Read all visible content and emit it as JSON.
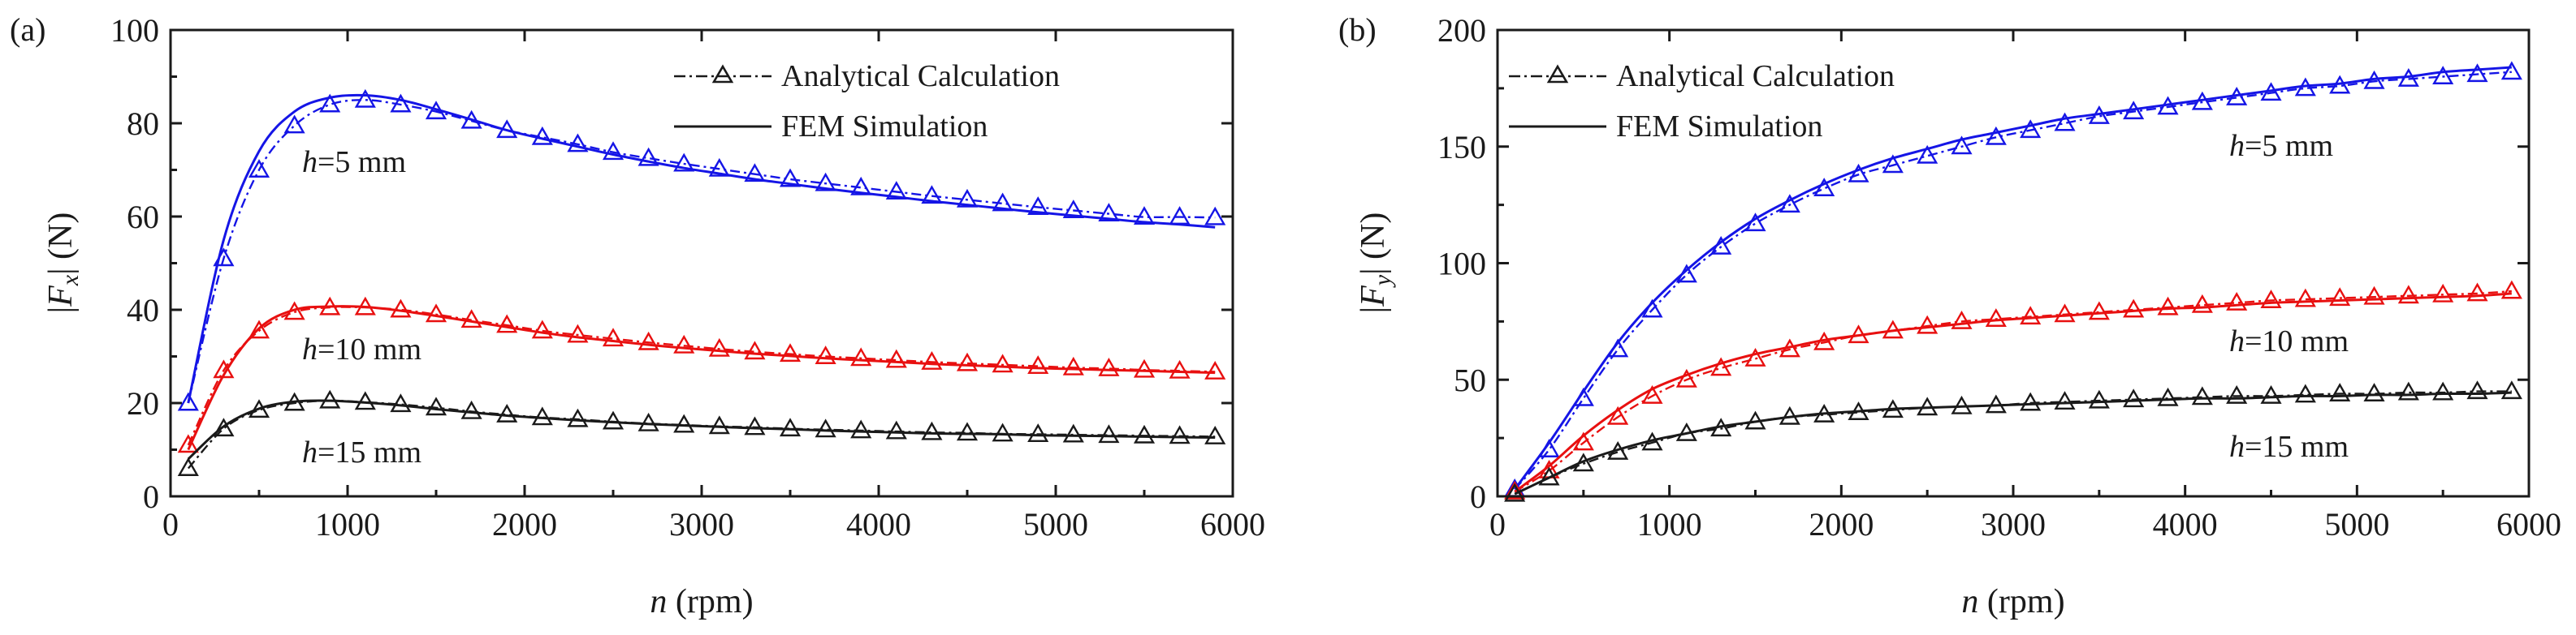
{
  "chart_data": [
    {
      "type": "line",
      "panel_label": "(a)",
      "ylabel_prefix": "|",
      "ylabel_var": "F",
      "ylabel_sub": "x",
      "ylabel_suffix": "| (N)",
      "xlabel_var": "n",
      "xlabel_suffix": " (rpm)",
      "xlim": [
        0,
        6000
      ],
      "ylim": [
        0,
        100
      ],
      "xticks": [
        0,
        1000,
        2000,
        3000,
        4000,
        5000,
        6000
      ],
      "yticks": [
        0,
        20,
        40,
        60,
        80,
        100
      ],
      "legend": {
        "position": "top-right",
        "entries": [
          {
            "label": "Analytical Calculation",
            "style": "dash-dot-triangle"
          },
          {
            "label": "FEM Simulation",
            "style": "solid"
          }
        ]
      },
      "series": [
        {
          "name": "h=5 mm",
          "annot_var": "h",
          "annot_text": "=5 mm",
          "color": "#1515e6",
          "x": [
            100,
            300,
            500,
            700,
            900,
            1100,
            1300,
            1500,
            1700,
            1900,
            2100,
            2300,
            2500,
            2700,
            2900,
            3100,
            3300,
            3500,
            3700,
            3900,
            4100,
            4300,
            4500,
            4700,
            4900,
            5100,
            5300,
            5500,
            5700,
            5900
          ],
          "analytical": [
            20,
            51,
            70,
            79.5,
            84,
            85,
            84,
            82.5,
            80.5,
            78.5,
            77,
            75.5,
            73.8,
            72.5,
            71.3,
            70.2,
            69.1,
            68,
            67.1,
            66.2,
            65.3,
            64.4,
            63.6,
            62.8,
            62,
            61.3,
            60.6,
            59.9,
            59.9,
            59.8
          ],
          "fem": [
            20,
            55,
            74,
            82.5,
            85.5,
            86,
            85,
            83,
            80.8,
            78.5,
            76.7,
            75,
            73.3,
            71.8,
            70.4,
            69.2,
            68,
            67,
            66,
            65.1,
            64.2,
            63.3,
            62.5,
            61.7,
            60.9,
            60.2,
            59.5,
            58.8,
            58.3,
            57.7
          ]
        },
        {
          "name": "h=10 mm",
          "annot_var": "h",
          "annot_text": "=10 mm",
          "color": "#e81010",
          "x": [
            100,
            300,
            500,
            700,
            900,
            1100,
            1300,
            1500,
            1700,
            1900,
            2100,
            2300,
            2500,
            2700,
            2900,
            3100,
            3300,
            3500,
            3700,
            3900,
            4100,
            4300,
            4500,
            4700,
            4900,
            5100,
            5300,
            5500,
            5700,
            5900
          ],
          "analytical": [
            11,
            27,
            35.5,
            39.5,
            40.5,
            40.5,
            40,
            39,
            37.8,
            36.7,
            35.5,
            34.6,
            33.8,
            33,
            32.3,
            31.6,
            31,
            30.5,
            30,
            29.6,
            29.2,
            28.8,
            28.5,
            28.2,
            27.9,
            27.6,
            27.4,
            27.1,
            26.9,
            26.7
          ],
          "fem": [
            10,
            26,
            36,
            40,
            40.7,
            40.6,
            39.8,
            38.7,
            37.5,
            36.3,
            35.1,
            34.1,
            33.3,
            32.5,
            31.8,
            31.2,
            30.6,
            30.1,
            29.6,
            29.2,
            28.8,
            28.4,
            28.1,
            27.8,
            27.5,
            27.3,
            27.1,
            26.9,
            26.7,
            26.5
          ]
        },
        {
          "name": "h=15 mm",
          "annot_var": "h",
          "annot_text": "=15 mm",
          "color": "#1a1a1a",
          "x": [
            100,
            300,
            500,
            700,
            900,
            1100,
            1300,
            1500,
            1700,
            1900,
            2100,
            2300,
            2500,
            2700,
            2900,
            3100,
            3300,
            3500,
            3700,
            3900,
            4100,
            4300,
            4500,
            4700,
            4900,
            5100,
            5300,
            5500,
            5700,
            5900
          ],
          "analytical": [
            6,
            14.5,
            18.5,
            20,
            20.5,
            20.2,
            19.7,
            19,
            18.2,
            17.5,
            16.9,
            16.5,
            16,
            15.6,
            15.3,
            15,
            14.8,
            14.5,
            14.3,
            14.1,
            13.9,
            13.7,
            13.6,
            13.4,
            13.3,
            13.2,
            13.1,
            13,
            12.9,
            12.8
          ],
          "fem": [
            8,
            15,
            18.8,
            20.3,
            20.5,
            20.1,
            19.5,
            18.7,
            18,
            17.3,
            16.8,
            16.3,
            15.9,
            15.5,
            15.2,
            14.9,
            14.6,
            14.4,
            14.1,
            13.9,
            13.7,
            13.5,
            13.4,
            13.3,
            13.1,
            13,
            12.9,
            12.8,
            12.7,
            12.6
          ]
        }
      ]
    },
    {
      "type": "line",
      "panel_label": "(b)",
      "ylabel_prefix": "|",
      "ylabel_var": "F",
      "ylabel_sub": "y",
      "ylabel_suffix": "| (N)",
      "xlabel_var": "n",
      "xlabel_suffix": " (rpm)",
      "xlim": [
        0,
        6000
      ],
      "ylim": [
        0,
        200
      ],
      "xticks": [
        0,
        1000,
        2000,
        3000,
        4000,
        5000,
        6000
      ],
      "yticks": [
        0,
        50,
        100,
        150,
        200
      ],
      "legend": {
        "position": "top-left",
        "entries": [
          {
            "label": "Analytical Calculation",
            "style": "dash-dot-triangle"
          },
          {
            "label": "FEM Simulation",
            "style": "solid"
          }
        ]
      },
      "series": [
        {
          "name": "h=5 mm",
          "annot_var": "h",
          "annot_text": "=5 mm",
          "color": "#1515e6",
          "x": [
            100,
            300,
            500,
            700,
            900,
            1100,
            1300,
            1500,
            1700,
            1900,
            2100,
            2300,
            2500,
            2700,
            2900,
            3100,
            3300,
            3500,
            3700,
            3900,
            4100,
            4300,
            4500,
            4700,
            4900,
            5100,
            5300,
            5500,
            5700,
            5900
          ],
          "analytical": [
            3,
            20,
            42,
            63,
            80,
            95,
            107,
            117,
            125,
            132,
            138,
            142,
            146,
            150,
            154,
            157,
            160,
            163,
            165,
            167,
            169,
            171,
            173,
            175,
            176,
            178,
            179,
            180,
            181,
            182
          ],
          "fem": [
            3,
            23,
            45,
            66,
            83,
            97,
            109,
            119,
            127,
            134,
            140,
            145,
            149,
            153,
            156,
            159,
            162,
            164,
            166,
            168,
            170,
            172,
            174,
            176,
            177,
            179,
            180,
            182,
            183,
            184
          ]
        },
        {
          "name": "h=10 mm",
          "annot_var": "h",
          "annot_text": "=10 mm",
          "color": "#e81010",
          "x": [
            100,
            300,
            500,
            700,
            900,
            1100,
            1300,
            1500,
            1700,
            1900,
            2100,
            2300,
            2500,
            2700,
            2900,
            3100,
            3300,
            3500,
            3700,
            3900,
            4100,
            4300,
            4500,
            4700,
            4900,
            5100,
            5300,
            5500,
            5700,
            5900
          ],
          "analytical": [
            2,
            11,
            23,
            34,
            43,
            50,
            55,
            59,
            63,
            66,
            69,
            71,
            73,
            75,
            76,
            77,
            78,
            79,
            80,
            81,
            82,
            83,
            84,
            84.5,
            85,
            85.5,
            86,
            86.5,
            87,
            88
          ],
          "fem": [
            2,
            13,
            26,
            37,
            46,
            52,
            57,
            61,
            64,
            67,
            69,
            71,
            72.5,
            74,
            75.5,
            76.5,
            77.5,
            78.5,
            79.5,
            80.5,
            81,
            82,
            83,
            83.5,
            84,
            84.5,
            85,
            85.5,
            86,
            87
          ]
        },
        {
          "name": "h=15 mm",
          "annot_var": "h",
          "annot_text": "=15 mm",
          "color": "#1a1a1a",
          "x": [
            100,
            300,
            500,
            700,
            900,
            1100,
            1300,
            1500,
            1700,
            1900,
            2100,
            2300,
            2500,
            2700,
            2900,
            3100,
            3300,
            3500,
            3700,
            3900,
            4100,
            4300,
            4500,
            4700,
            4900,
            5100,
            5300,
            5500,
            5700,
            5900
          ],
          "analytical": [
            1,
            8,
            14,
            19,
            23,
            27,
            29,
            32,
            34,
            35,
            36,
            37,
            38,
            38.5,
            39,
            40,
            40.5,
            41,
            41.5,
            42,
            42.5,
            43,
            43,
            43.5,
            44,
            44,
            44.5,
            44.5,
            45,
            45
          ],
          "fem": [
            1,
            8,
            15,
            20,
            24,
            27,
            30,
            32,
            34,
            35.5,
            36.5,
            37.5,
            38,
            38.5,
            39,
            39.5,
            40,
            40.5,
            41,
            41.5,
            42,
            42,
            42.5,
            43,
            43,
            43.5,
            43.5,
            44,
            44,
            44.5
          ]
        }
      ]
    }
  ]
}
